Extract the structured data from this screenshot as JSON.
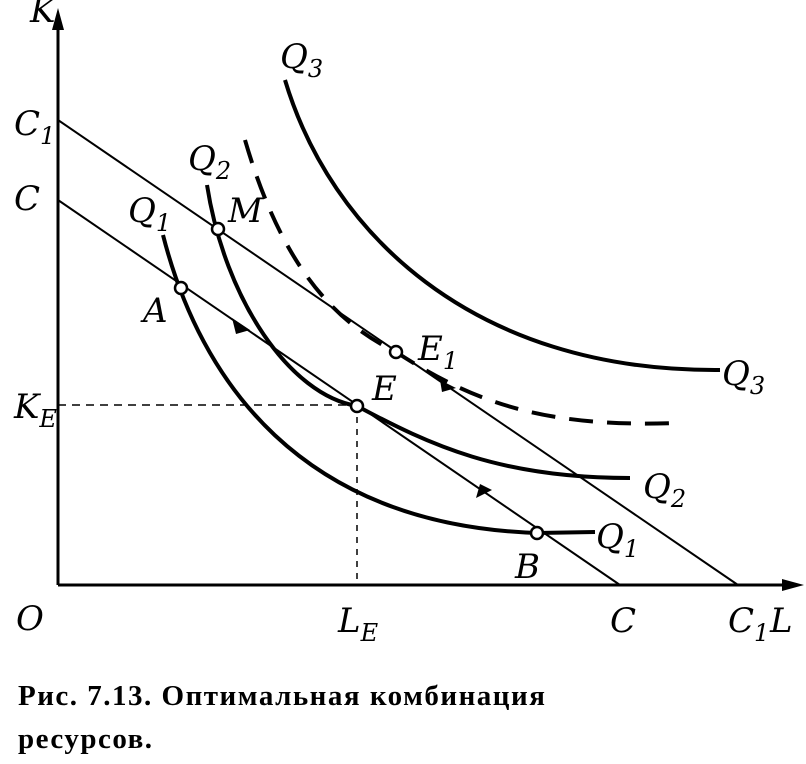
{
  "figure": {
    "labels": [
      {
        "text": "K"
      },
      {
        "text": "C",
        "sub": "1"
      },
      {
        "text": "C"
      },
      {
        "text": "K",
        "sub": "E"
      },
      {
        "text": "O"
      },
      {
        "text": "L",
        "sub": "E"
      },
      {
        "text": "C"
      },
      {
        "text": "C",
        "sub": "1"
      },
      {
        "text": "L"
      },
      {
        "text": "Q",
        "sub": "3"
      },
      {
        "text": "Q",
        "sub": "2"
      },
      {
        "text": "Q",
        "sub": "1"
      },
      {
        "text": "M"
      },
      {
        "text": "A"
      },
      {
        "text": "E",
        "sub": "1"
      },
      {
        "text": "E"
      },
      {
        "text": "Q",
        "sub": "3"
      },
      {
        "text": "Q",
        "sub": "2"
      },
      {
        "text": "Q",
        "sub": "1"
      },
      {
        "text": "B"
      }
    ],
    "caption": {
      "line1": "Рис.   7.13.   Оптимальная комбинация",
      "line2": "ресурсов."
    }
  }
}
